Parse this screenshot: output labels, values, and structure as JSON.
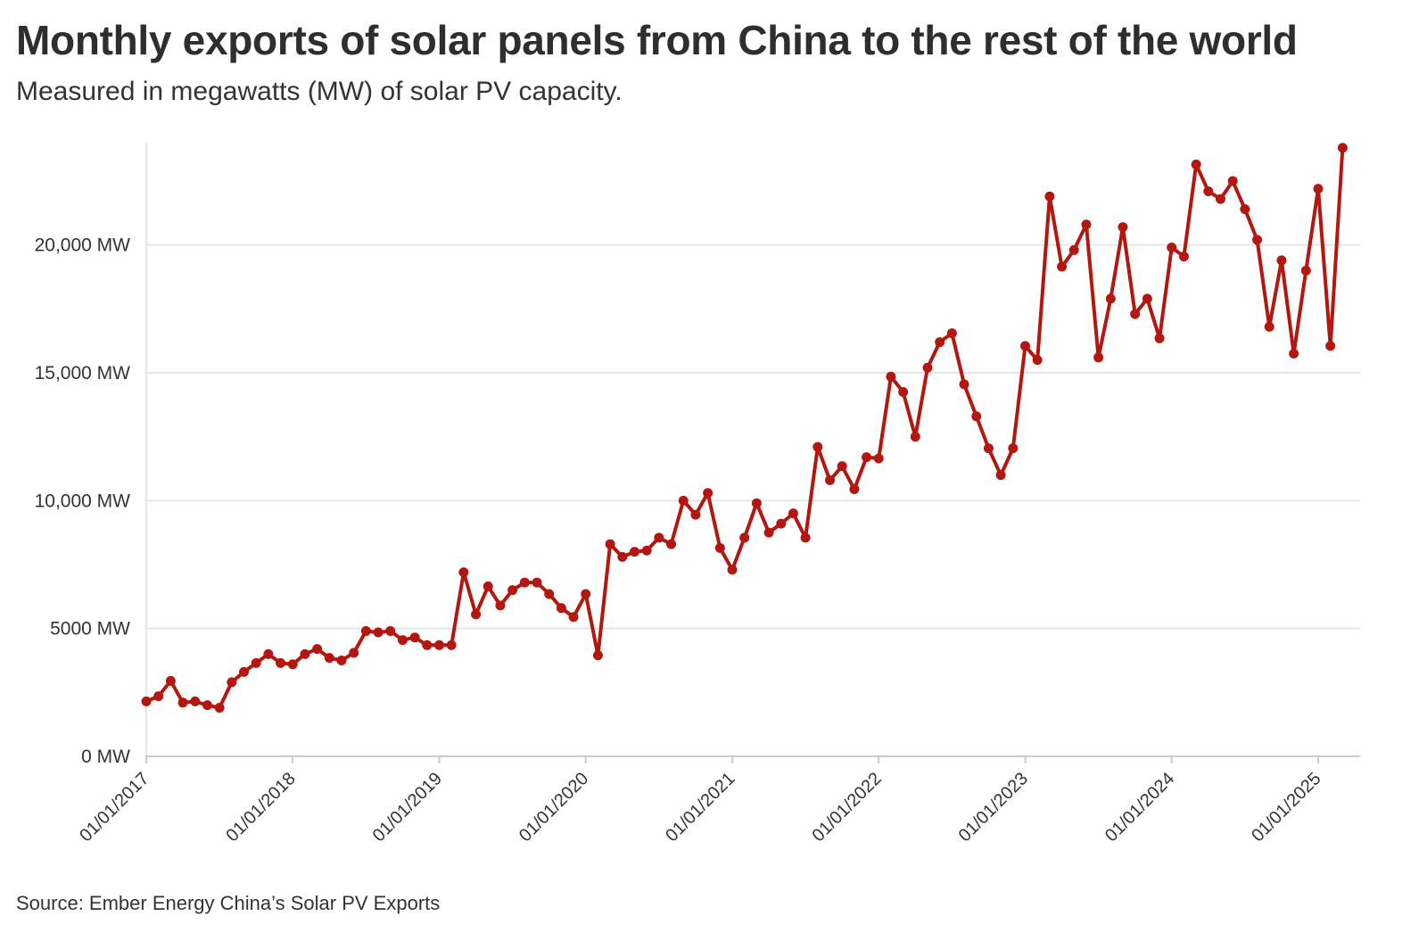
{
  "header": {
    "title": "Monthly exports of solar panels from China to the rest of the world",
    "subtitle": "Measured in megawatts (MW) of solar PV capacity."
  },
  "footer": {
    "source": "Source: Ember Energy China’s Solar PV Exports"
  },
  "colors": {
    "series": "#b3170f",
    "grid": "#e6e6e6",
    "axis": "#cccccc",
    "text": "#333333"
  },
  "chart_data": {
    "type": "line",
    "title": "Monthly exports of solar panels from China to the rest of the world",
    "subtitle": "Measured in megawatts (MW) of solar PV capacity.",
    "xlabel": "",
    "ylabel": "",
    "ylim": [
      0,
      24000
    ],
    "y_ticks": [
      0,
      5000,
      10000,
      15000,
      20000
    ],
    "y_tick_labels": [
      "0 MW",
      "5000 MW",
      "10,000 MW",
      "15,000 MW",
      "20,000 MW"
    ],
    "x_ticks": [
      "2017-01-01",
      "2018-01-01",
      "2019-01-01",
      "2020-01-01",
      "2021-01-01",
      "2022-01-01",
      "2023-01-01",
      "2024-01-01",
      "2025-01-01"
    ],
    "x_tick_labels": [
      "01/01/2017",
      "01/01/2018",
      "01/01/2019",
      "01/01/2020",
      "01/01/2021",
      "01/01/2022",
      "01/01/2023",
      "01/01/2024",
      "01/01/2025"
    ],
    "grid": true,
    "legend": "none",
    "x_start": "2017-01",
    "x_frequency": "monthly",
    "series": [
      {
        "values": [
          2150,
          2350,
          2950,
          2100,
          2150,
          2000,
          1900,
          2900,
          3300,
          3650,
          4000,
          3650,
          3600,
          4000,
          4200,
          3850,
          3750,
          4050,
          4900,
          4850,
          4900,
          4550,
          4650,
          4350,
          4350,
          4350,
          7200,
          5550,
          6650,
          5900,
          6500,
          6800,
          6800,
          6350,
          5800,
          5450,
          6350,
          3950,
          8300,
          7800,
          8000,
          8050,
          8550,
          8300,
          10000,
          9450,
          10300,
          8150,
          7300,
          8550,
          9900,
          8750,
          9100,
          9500,
          8550,
          12100,
          10800,
          11350,
          10450,
          11700,
          11650,
          14850,
          14250,
          12500,
          15200,
          16200,
          16550,
          14550,
          13300,
          12050,
          11000,
          12050,
          16050,
          15500,
          21900,
          19150,
          19800,
          20800,
          15600,
          17900,
          20700,
          17300,
          17900,
          16350,
          19900,
          19550,
          23150,
          22100,
          21800,
          22500,
          21400,
          20200,
          16800,
          19400,
          15750,
          19000,
          22200,
          16050,
          23800
        ]
      }
    ]
  }
}
